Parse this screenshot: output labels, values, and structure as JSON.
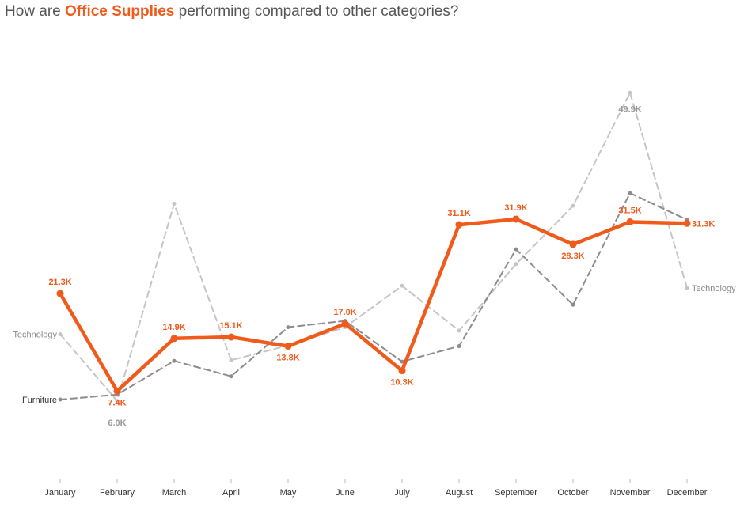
{
  "title": {
    "prefix": "How are ",
    "highlight": "Office Supplies",
    "suffix": " performing compared to other categories?"
  },
  "colors": {
    "office_supplies": "#f05a1a",
    "furniture": "#8f8a8f",
    "technology": "#c8c3c8",
    "axis_text": "#333333",
    "other_label": "#999999"
  },
  "chart_data": {
    "type": "line",
    "title": "How are Office Supplies performing compared to other categories?",
    "categories": [
      "January",
      "February",
      "March",
      "April",
      "May",
      "June",
      "July",
      "August",
      "September",
      "October",
      "November",
      "December"
    ],
    "ylim": [
      0,
      55000
    ],
    "series": [
      {
        "name": "Office Supplies",
        "values": [
          21300,
          7400,
          14900,
          15100,
          13800,
          17000,
          10300,
          31100,
          31900,
          28300,
          31500,
          31300
        ],
        "labels": [
          "21.3K",
          "7.4K",
          "14.9K",
          "15.1K",
          "13.8K",
          "17.0K",
          "10.3K",
          "31.1K",
          "31.9K",
          "28.3K",
          "31.5K",
          "31.3K"
        ]
      },
      {
        "name": "Furniture",
        "label": "Furniture",
        "values": [
          6200,
          6900,
          11700,
          9500,
          16500,
          17400,
          11600,
          13800,
          27600,
          19700,
          35600,
          31800
        ]
      },
      {
        "name": "Technology",
        "start_label": "Technology",
        "end_label": "Technology",
        "values": [
          15500,
          6000,
          34100,
          11800,
          13900,
          16500,
          22400,
          16000,
          25500,
          33800,
          49900,
          22100
        ],
        "point_labels": {
          "1": "6.0K",
          "10": "49.9K"
        }
      }
    ]
  }
}
